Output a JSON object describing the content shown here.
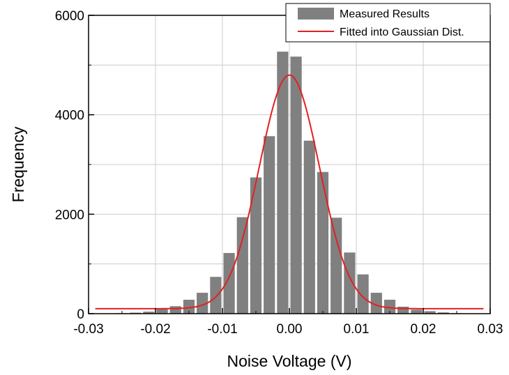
{
  "chart_data": {
    "type": "bar",
    "title": "",
    "xlabel": "Noise Voltage (V)",
    "ylabel": "Frequency",
    "xlim": [
      -0.03,
      0.03
    ],
    "ylim": [
      0,
      6000
    ],
    "grid": true,
    "legend_position": "top-right",
    "x_ticks": [
      "-0.03",
      "-0.02",
      "-0.01",
      "0.00",
      "0.01",
      "0.02",
      "0.03"
    ],
    "y_ticks": [
      "0",
      "2000",
      "4000",
      "6000"
    ],
    "bin_width": 0.002,
    "series": [
      {
        "name": "Measured Results",
        "kind": "bar",
        "color": "#808080",
        "x": [
          -0.027,
          -0.025,
          -0.023,
          -0.021,
          -0.019,
          -0.017,
          -0.015,
          -0.013,
          -0.011,
          -0.009,
          -0.007,
          -0.005,
          -0.003,
          -0.001,
          0.001,
          0.003,
          0.005,
          0.007,
          0.009,
          0.011,
          0.013,
          0.015,
          0.017,
          0.019,
          0.021,
          0.023,
          0.025,
          0.027
        ],
        "values": [
          5,
          10,
          20,
          40,
          90,
          150,
          280,
          420,
          740,
          1220,
          1940,
          2740,
          3570,
          5270,
          5170,
          3480,
          2850,
          1930,
          1230,
          790,
          420,
          280,
          140,
          80,
          50,
          25,
          10,
          5
        ]
      },
      {
        "name": "Fitted into Gaussian Dist.",
        "kind": "line",
        "color": "#e32020",
        "model": "gaussian",
        "mean": 0.0,
        "sigma": 0.0045,
        "amplitude": 4700,
        "offset": 100
      }
    ]
  }
}
